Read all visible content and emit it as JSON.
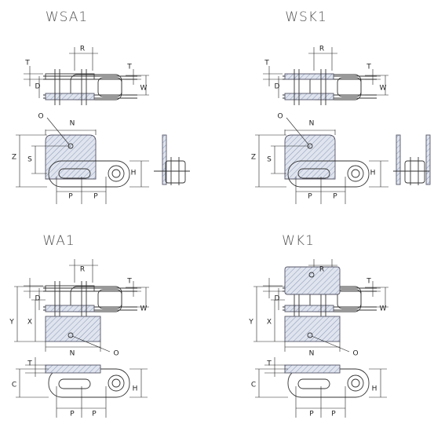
{
  "panels": [
    {
      "title": "WSA1",
      "labels": [
        "R",
        "T",
        "T",
        "D",
        "W",
        "O",
        "N",
        "Z",
        "S",
        "H",
        "P",
        "P"
      ]
    },
    {
      "title": "WSK1",
      "labels": [
        "R",
        "T",
        "T",
        "D",
        "W",
        "O",
        "N",
        "Z",
        "S",
        "H",
        "P",
        "P"
      ]
    },
    {
      "title": "WA1",
      "labels": [
        "R",
        "T",
        "D",
        "W",
        "Y",
        "X",
        "N",
        "O",
        "T",
        "C",
        "H",
        "P",
        "P"
      ]
    },
    {
      "title": "WK1",
      "labels": [
        "R",
        "T",
        "D",
        "W",
        "Y",
        "X",
        "N",
        "O",
        "T",
        "C",
        "H",
        "P",
        "P"
      ]
    }
  ]
}
